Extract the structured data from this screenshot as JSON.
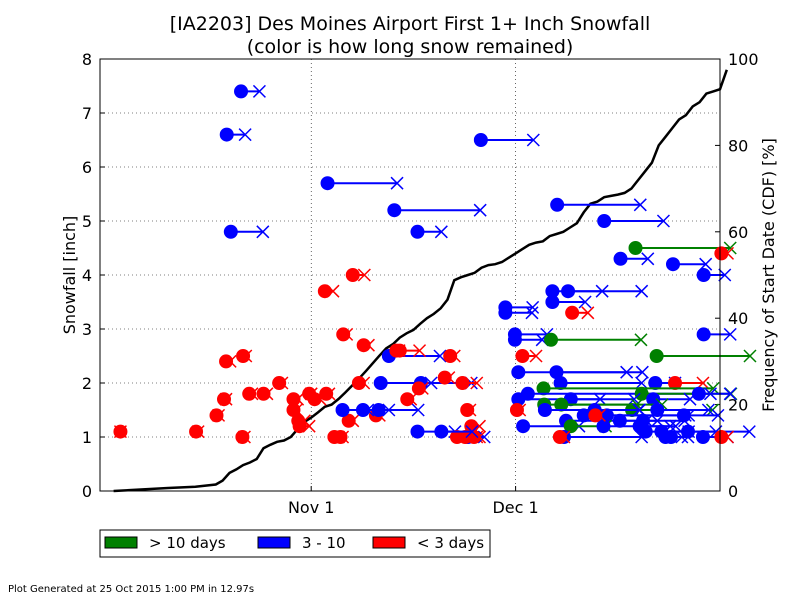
{
  "footer": "Plot Generated at 25 Oct 2015 1:00 PM in 12.97s",
  "chart_data": {
    "type": "scatter",
    "title_line1": "[IA2203] Des Moines Airport First 1+ Inch Snowfall",
    "title_line2": "(color is how long snow remained)",
    "ylabel": "Snowfall [inch]",
    "ylabel_right": "Frequency of Start Date (CDF) [%]",
    "x_units": "day offset from Oct 1 (Oct 1 = 0, Nov 1 = 31, Dec 1 = 61)",
    "xlim": [
      0,
      91
    ],
    "ylim": [
      0,
      8
    ],
    "ylim_right": [
      0,
      100
    ],
    "yticks": [
      0,
      1,
      2,
      3,
      4,
      5,
      6,
      7,
      8
    ],
    "yticks_right": [
      0,
      20,
      40,
      60,
      80,
      100
    ],
    "xticks": [
      {
        "day": 31,
        "label": "Nov 1"
      },
      {
        "day": 61,
        "label": "Dec 1"
      }
    ],
    "grid": true,
    "legend_position": "below-plot",
    "legend": [
      {
        "key": "long",
        "label": "> 10 days",
        "color": "#008000"
      },
      {
        "key": "mid",
        "label": "3 - 10",
        "color": "#0000ff"
      },
      {
        "key": "short",
        "label": "< 3 days",
        "color": "#ff0000"
      }
    ],
    "events": [
      {
        "start": 20.7,
        "end": 23.4,
        "snow": 7.4,
        "cat": "mid"
      },
      {
        "start": 18.6,
        "end": 21.3,
        "snow": 6.6,
        "cat": "mid"
      },
      {
        "start": 19.2,
        "end": 23.9,
        "snow": 4.8,
        "cat": "mid"
      },
      {
        "start": 33.4,
        "end": 43.6,
        "snow": 5.7,
        "cat": "mid"
      },
      {
        "start": 43.2,
        "end": 55.8,
        "snow": 5.2,
        "cat": "mid"
      },
      {
        "start": 46.6,
        "end": 50.1,
        "snow": 4.8,
        "cat": "mid"
      },
      {
        "start": 55.9,
        "end": 63.6,
        "snow": 6.5,
        "cat": "mid"
      },
      {
        "start": 67.1,
        "end": 79.3,
        "snow": 5.3,
        "cat": "mid"
      },
      {
        "start": 74.0,
        "end": 82.7,
        "snow": 5.0,
        "cat": "mid"
      },
      {
        "start": 78.6,
        "end": 92.5,
        "snow": 4.5,
        "cat": "long"
      },
      {
        "start": 76.4,
        "end": 80.4,
        "snow": 4.3,
        "cat": "mid"
      },
      {
        "start": 84.1,
        "end": 88.9,
        "snow": 4.2,
        "cat": "mid"
      },
      {
        "start": 88.6,
        "end": 91.7,
        "snow": 4.0,
        "cat": "mid"
      },
      {
        "start": 91.2,
        "end": 92.1,
        "snow": 4.4,
        "cat": "short"
      },
      {
        "start": 59.5,
        "end": 63.5,
        "snow": 3.4,
        "cat": "mid"
      },
      {
        "start": 59.5,
        "end": 63.4,
        "snow": 3.3,
        "cat": "mid"
      },
      {
        "start": 66.4,
        "end": 73.7,
        "snow": 3.7,
        "cat": "mid"
      },
      {
        "start": 68.7,
        "end": 79.5,
        "snow": 3.7,
        "cat": "mid"
      },
      {
        "start": 66.4,
        "end": 71.2,
        "snow": 3.5,
        "cat": "mid"
      },
      {
        "start": 69.3,
        "end": 71.6,
        "snow": 3.3,
        "cat": "short"
      },
      {
        "start": 60.9,
        "end": 65.6,
        "snow": 2.9,
        "cat": "mid"
      },
      {
        "start": 60.9,
        "end": 64.9,
        "snow": 2.8,
        "cat": "mid"
      },
      {
        "start": 66.2,
        "end": 79.4,
        "snow": 2.8,
        "cat": "long"
      },
      {
        "start": 88.6,
        "end": 92.5,
        "snow": 2.9,
        "cat": "mid"
      },
      {
        "start": 81.7,
        "end": 95.4,
        "snow": 2.5,
        "cat": "long"
      },
      {
        "start": 62.0,
        "end": 64.0,
        "snow": 2.5,
        "cat": "short"
      },
      {
        "start": 42.4,
        "end": 49.9,
        "snow": 2.5,
        "cat": "mid"
      },
      {
        "start": 44.0,
        "end": 46.9,
        "snow": 2.6,
        "cat": "short"
      },
      {
        "start": 41.2,
        "end": 48.6,
        "snow": 2.0,
        "cat": "mid"
      },
      {
        "start": 47.1,
        "end": 54.5,
        "snow": 2.0,
        "cat": "mid"
      },
      {
        "start": 53.2,
        "end": 55.3,
        "snow": 2.0,
        "cat": "short"
      },
      {
        "start": 61.4,
        "end": 77.3,
        "snow": 2.2,
        "cat": "mid"
      },
      {
        "start": 67.0,
        "end": 79.6,
        "snow": 2.2,
        "cat": "mid"
      },
      {
        "start": 67.6,
        "end": 79.5,
        "snow": 2.0,
        "cat": "mid"
      },
      {
        "start": 81.5,
        "end": 84.4,
        "snow": 2.0,
        "cat": "mid"
      },
      {
        "start": 84.4,
        "end": 88.5,
        "snow": 2.0,
        "cat": "short"
      },
      {
        "start": 65.1,
        "end": 90.0,
        "snow": 1.9,
        "cat": "long"
      },
      {
        "start": 62.8,
        "end": 89.6,
        "snow": 1.8,
        "cat": "mid"
      },
      {
        "start": 79.5,
        "end": 92.6,
        "snow": 1.8,
        "cat": "long"
      },
      {
        "start": 87.9,
        "end": 92.5,
        "snow": 1.8,
        "cat": "mid"
      },
      {
        "start": 61.4,
        "end": 73.4,
        "snow": 1.7,
        "cat": "mid"
      },
      {
        "start": 69.1,
        "end": 78.4,
        "snow": 1.7,
        "cat": "mid"
      },
      {
        "start": 81.2,
        "end": 86.6,
        "snow": 1.7,
        "cat": "mid"
      },
      {
        "start": 65.2,
        "end": 78.8,
        "snow": 1.6,
        "cat": "long"
      },
      {
        "start": 67.7,
        "end": 82.5,
        "snow": 1.6,
        "cat": "long"
      },
      {
        "start": 78.1,
        "end": 89.9,
        "snow": 1.5,
        "cat": "long"
      },
      {
        "start": 65.3,
        "end": 79.2,
        "snow": 1.5,
        "cat": "mid"
      },
      {
        "start": 72.6,
        "end": 79.1,
        "snow": 1.5,
        "cat": "mid"
      },
      {
        "start": 81.8,
        "end": 89.3,
        "snow": 1.5,
        "cat": "mid"
      },
      {
        "start": 71.0,
        "end": 85.9,
        "snow": 1.4,
        "cat": "mid"
      },
      {
        "start": 74.4,
        "end": 86.4,
        "snow": 1.4,
        "cat": "mid"
      },
      {
        "start": 85.7,
        "end": 90.7,
        "snow": 1.4,
        "cat": "mid"
      },
      {
        "start": 68.4,
        "end": 80.2,
        "snow": 1.3,
        "cat": "mid"
      },
      {
        "start": 76.3,
        "end": 85.8,
        "snow": 1.3,
        "cat": "mid"
      },
      {
        "start": 79.7,
        "end": 81.8,
        "snow": 1.3,
        "cat": "mid"
      },
      {
        "start": 62.1,
        "end": 70.3,
        "snow": 1.2,
        "cat": "mid"
      },
      {
        "start": 69.1,
        "end": 74.2,
        "snow": 1.2,
        "cat": "long"
      },
      {
        "start": 73.9,
        "end": 83.7,
        "snow": 1.2,
        "cat": "mid"
      },
      {
        "start": 79.2,
        "end": 84.5,
        "snow": 1.2,
        "cat": "mid"
      },
      {
        "start": 80.1,
        "end": 86.4,
        "snow": 1.1,
        "cat": "mid"
      },
      {
        "start": 82.4,
        "end": 90.4,
        "snow": 1.1,
        "cat": "mid"
      },
      {
        "start": 86.3,
        "end": 95.3,
        "snow": 1.1,
        "cat": "mid"
      },
      {
        "start": 68.1,
        "end": 79.5,
        "snow": 1.0,
        "cat": "mid"
      },
      {
        "start": 83.0,
        "end": 85.4,
        "snow": 1.0,
        "cat": "mid"
      },
      {
        "start": 83.8,
        "end": 86.3,
        "snow": 1.0,
        "cat": "mid"
      },
      {
        "start": 88.5,
        "end": 92.1,
        "snow": 1.0,
        "cat": "mid"
      },
      {
        "start": 91.2,
        "end": 92.1,
        "snow": 1.0,
        "cat": "short"
      },
      {
        "start": 67.5,
        "end": 68.1,
        "snow": 1.0,
        "cat": "short"
      },
      {
        "start": 46.6,
        "end": 52.1,
        "snow": 1.1,
        "cat": "mid"
      },
      {
        "start": 52.4,
        "end": 55.3,
        "snow": 1.0,
        "cat": "short"
      },
      {
        "start": 54.0,
        "end": 56.4,
        "snow": 1.0,
        "cat": "mid"
      },
      {
        "start": 53.6,
        "end": 54.3,
        "snow": 1.0,
        "cat": "short"
      },
      {
        "start": 54.9,
        "end": 55.7,
        "snow": 1.0,
        "cat": "short"
      },
      {
        "start": 54.5,
        "end": 55.7,
        "snow": 1.2,
        "cat": "short"
      },
      {
        "start": 53.9,
        "end": 54.3,
        "snow": 1.5,
        "cat": "short"
      },
      {
        "start": 3.0,
        "end": 3.0,
        "snow": 1.1,
        "cat": "short"
      },
      {
        "start": 14.1,
        "end": 14.4,
        "snow": 1.1,
        "cat": "short"
      },
      {
        "start": 20.9,
        "end": 21.2,
        "snow": 1.0,
        "cat": "short"
      },
      {
        "start": 17.1,
        "end": 17.4,
        "snow": 1.4,
        "cat": "short"
      },
      {
        "start": 18.2,
        "end": 18.5,
        "snow": 1.7,
        "cat": "short"
      },
      {
        "start": 21.0,
        "end": 21.4,
        "snow": 2.5,
        "cat": "short"
      },
      {
        "start": 18.5,
        "end": 19.1,
        "snow": 2.4,
        "cat": "short"
      },
      {
        "start": 21.9,
        "end": 22.3,
        "snow": 1.8,
        "cat": "short"
      },
      {
        "start": 24.0,
        "end": 24.5,
        "snow": 1.8,
        "cat": "short"
      },
      {
        "start": 26.3,
        "end": 26.7,
        "snow": 2.0,
        "cat": "short"
      },
      {
        "start": 28.4,
        "end": 29.0,
        "snow": 1.7,
        "cat": "short"
      },
      {
        "start": 28.4,
        "end": 28.8,
        "snow": 1.5,
        "cat": "short"
      },
      {
        "start": 29.1,
        "end": 30.0,
        "snow": 1.3,
        "cat": "short"
      },
      {
        "start": 29.3,
        "end": 30.7,
        "snow": 1.2,
        "cat": "short"
      },
      {
        "start": 30.7,
        "end": 31.0,
        "snow": 1.8,
        "cat": "short"
      },
      {
        "start": 31.5,
        "end": 32.3,
        "snow": 1.7,
        "cat": "short"
      },
      {
        "start": 33.2,
        "end": 33.6,
        "snow": 1.8,
        "cat": "short"
      },
      {
        "start": 33.0,
        "end": 34.2,
        "snow": 3.7,
        "cat": "short"
      },
      {
        "start": 34.4,
        "end": 35.0,
        "snow": 1.0,
        "cat": "short"
      },
      {
        "start": 35.3,
        "end": 35.6,
        "snow": 1.0,
        "cat": "short"
      },
      {
        "start": 35.7,
        "end": 36.2,
        "snow": 2.9,
        "cat": "short"
      },
      {
        "start": 37.1,
        "end": 38.8,
        "snow": 4.0,
        "cat": "short"
      },
      {
        "start": 36.5,
        "end": 37.1,
        "snow": 1.3,
        "cat": "short"
      },
      {
        "start": 38.0,
        "end": 38.7,
        "snow": 2.0,
        "cat": "short"
      },
      {
        "start": 38.7,
        "end": 39.4,
        "snow": 2.7,
        "cat": "short"
      },
      {
        "start": 40.5,
        "end": 41.0,
        "snow": 1.4,
        "cat": "short"
      },
      {
        "start": 43.5,
        "end": 43.9,
        "snow": 2.6,
        "cat": "short"
      },
      {
        "start": 45.1,
        "end": 45.6,
        "snow": 1.7,
        "cat": "short"
      },
      {
        "start": 46.8,
        "end": 47.3,
        "snow": 1.9,
        "cat": "short"
      },
      {
        "start": 50.6,
        "end": 51.2,
        "snow": 2.1,
        "cat": "short"
      },
      {
        "start": 51.4,
        "end": 52.0,
        "snow": 2.5,
        "cat": "short"
      },
      {
        "start": 61.2,
        "end": 61.6,
        "snow": 1.5,
        "cat": "short"
      },
      {
        "start": 72.7,
        "end": 73.3,
        "snow": 1.4,
        "cat": "short"
      },
      {
        "start": 35.6,
        "end": 39.3,
        "snow": 1.5,
        "cat": "mid"
      },
      {
        "start": 38.6,
        "end": 42.4,
        "snow": 1.5,
        "cat": "mid"
      },
      {
        "start": 40.9,
        "end": 46.7,
        "snow": 1.5,
        "cat": "mid"
      },
      {
        "start": 50.1,
        "end": 54.6,
        "snow": 1.1,
        "cat": "mid"
      }
    ],
    "cdf": {
      "x": [
        2,
        10,
        14,
        17,
        18,
        19,
        20,
        21,
        22,
        23,
        24,
        25,
        26,
        27,
        28,
        29,
        30,
        31,
        32,
        33,
        34,
        35,
        36,
        37,
        38,
        39,
        40,
        41,
        42,
        43,
        44,
        45,
        46,
        47,
        48,
        49,
        50,
        51,
        52,
        53,
        54,
        55,
        56,
        57,
        58,
        59,
        60,
        61,
        62,
        63,
        64,
        65,
        66,
        67,
        68,
        69,
        70,
        71,
        72,
        73,
        74,
        75,
        76,
        77,
        78,
        79,
        80,
        81,
        82,
        83,
        84,
        85,
        86,
        87,
        88,
        89,
        90,
        91,
        92
      ],
      "y": [
        0,
        0.7,
        1,
        1.5,
        2.4,
        4.2,
        5.0,
        6.0,
        6.6,
        7.4,
        9.9,
        10.7,
        11.4,
        11.7,
        12.5,
        14.3,
        16.0,
        17.0,
        18.2,
        19.5,
        20.0,
        21.3,
        22.8,
        24.4,
        26.0,
        27.7,
        29.5,
        31.3,
        33.0,
        34.0,
        35.5,
        36.5,
        37.3,
        38.7,
        40.0,
        41.0,
        42.3,
        44.3,
        48.8,
        49.5,
        50.0,
        50.5,
        51.7,
        52.3,
        52.5,
        53.0,
        54.0,
        55.0,
        56.0,
        57.0,
        57.5,
        57.8,
        59.0,
        59.5,
        60.0,
        61.0,
        62.0,
        64.5,
        66.5,
        67.0,
        68.0,
        68.3,
        68.6,
        69.0,
        70.0,
        72.0,
        74.0,
        76.0,
        80.0,
        82.0,
        84.0,
        86.0,
        87.0,
        89.0,
        90.0,
        92.0,
        92.5,
        93.0,
        97.5
      ]
    }
  }
}
